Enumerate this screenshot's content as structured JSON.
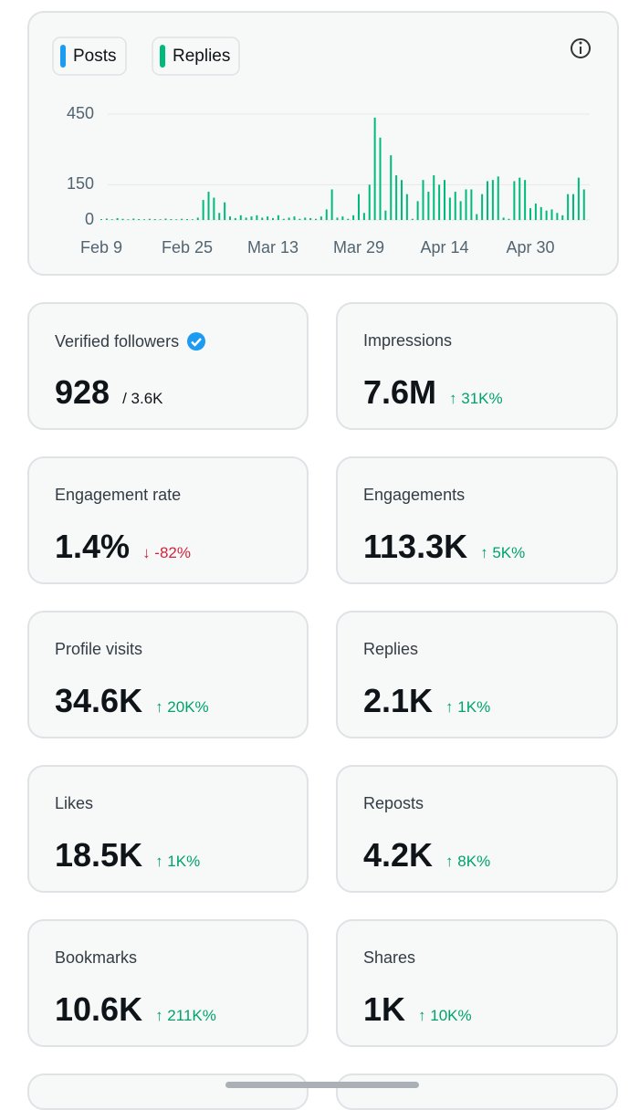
{
  "chart_data": {
    "type": "bar",
    "stacked": true,
    "categories": [
      "Feb 9",
      null,
      null,
      null,
      null,
      null,
      null,
      null,
      null,
      null,
      null,
      null,
      null,
      null,
      null,
      null,
      "Feb 25",
      null,
      null,
      null,
      null,
      null,
      null,
      null,
      null,
      null,
      null,
      null,
      null,
      null,
      null,
      null,
      "Mar 13",
      null,
      null,
      null,
      null,
      null,
      null,
      null,
      null,
      null,
      null,
      null,
      null,
      null,
      null,
      null,
      "Mar 29",
      null,
      null,
      null,
      null,
      null,
      null,
      null,
      null,
      null,
      null,
      null,
      null,
      null,
      null,
      null,
      "Apr 14",
      null,
      null,
      null,
      null,
      null,
      null,
      null,
      null,
      null,
      null,
      null,
      null,
      null,
      null,
      null,
      "Apr 30",
      null,
      null,
      null,
      null,
      null,
      null,
      null,
      null,
      null,
      null
    ],
    "series": [
      {
        "name": "Posts",
        "color": "#1d9bf0",
        "values": [
          0,
          0,
          0,
          0,
          0,
          0,
          0,
          0,
          0,
          0,
          0,
          0,
          0,
          0,
          0,
          0,
          0,
          0,
          0,
          0,
          0,
          0,
          0,
          0,
          0,
          0,
          0,
          0,
          0,
          0,
          0,
          0,
          0,
          0,
          0,
          0,
          0,
          0,
          0,
          0,
          0,
          0,
          0,
          0,
          0,
          0,
          0,
          0,
          0,
          0,
          0,
          0,
          0,
          0,
          0,
          0,
          0,
          0,
          0,
          0,
          0,
          0,
          0,
          0,
          0,
          0,
          0,
          0,
          0,
          0,
          0,
          0,
          0,
          0,
          0,
          0,
          0,
          0,
          0,
          0,
          0,
          0,
          0,
          0,
          0,
          0,
          0,
          0,
          0,
          0,
          0
        ]
      },
      {
        "name": "Replies",
        "color": "#00ba7c",
        "values": [
          4,
          6,
          3,
          8,
          5,
          3,
          6,
          4,
          3,
          5,
          4,
          3,
          6,
          4,
          3,
          5,
          4,
          3,
          10,
          85,
          120,
          95,
          30,
          75,
          15,
          8,
          20,
          10,
          15,
          20,
          10,
          15,
          8,
          20,
          5,
          10,
          15,
          5,
          10,
          8,
          5,
          15,
          45,
          130,
          10,
          15,
          5,
          20,
          110,
          30,
          150,
          435,
          350,
          40,
          275,
          190,
          170,
          110,
          5,
          80,
          170,
          120,
          190,
          150,
          170,
          95,
          120,
          80,
          130,
          130,
          25,
          110,
          165,
          170,
          185,
          10,
          5,
          165,
          180,
          170,
          50,
          70,
          55,
          40,
          45,
          30,
          20,
          110,
          110,
          180,
          130
        ]
      }
    ],
    "ylim": [
      0,
      450
    ],
    "yticks": [
      0,
      150,
      450
    ],
    "grid": true
  },
  "stats": [
    {
      "label": "Verified followers",
      "value": "928",
      "total": "/ 3.6K",
      "verified": true
    },
    {
      "label": "Impressions",
      "value": "7.6M",
      "change": "↑ 31K%",
      "trend": "up"
    },
    {
      "label": "Engagement rate",
      "value": "1.4%",
      "change": "↓ -82%",
      "trend": "down"
    },
    {
      "label": "Engagements",
      "value": "113.3K",
      "change": "↑ 5K%",
      "trend": "up"
    },
    {
      "label": "Profile visits",
      "value": "34.6K",
      "change": "↑ 20K%",
      "trend": "up"
    },
    {
      "label": "Replies",
      "value": "2.1K",
      "change": "↑ 1K%",
      "trend": "up"
    },
    {
      "label": "Likes",
      "value": "18.5K",
      "change": "↑ 1K%",
      "trend": "up"
    },
    {
      "label": "Reposts",
      "value": "4.2K",
      "change": "↑ 8K%",
      "trend": "up"
    },
    {
      "label": "Bookmarks",
      "value": "10.6K",
      "change": "↑ 211K%",
      "trend": "up"
    },
    {
      "label": "Shares",
      "value": "1K",
      "change": "↑ 10K%",
      "trend": "up"
    }
  ]
}
